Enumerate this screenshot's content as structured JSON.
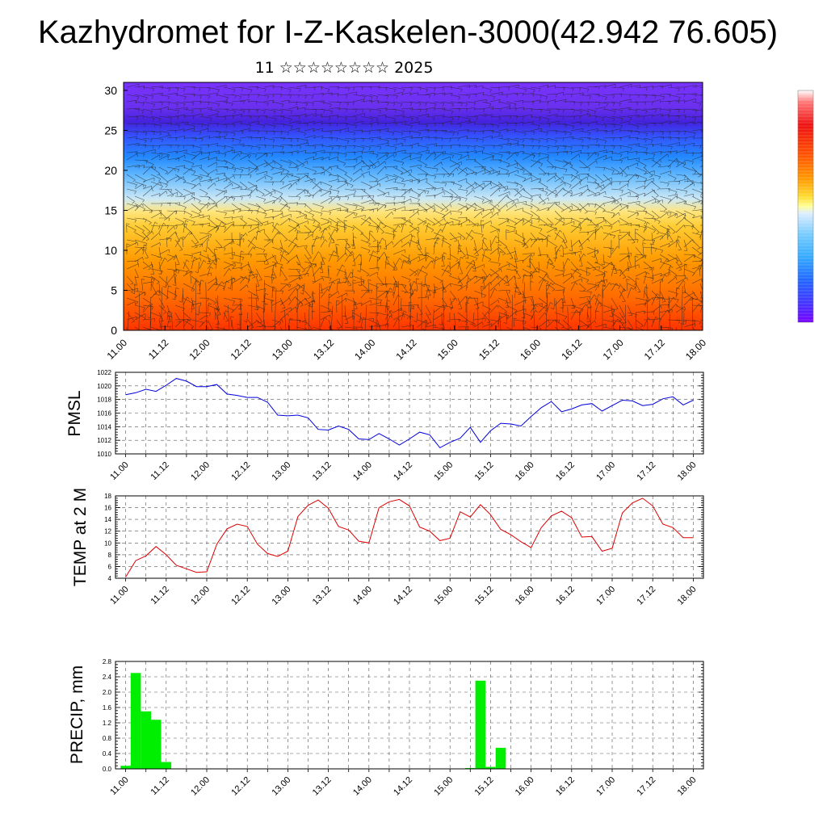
{
  "header": {
    "title": "Kazhydromet for I-Z-Kaskelen-3000(42.942 76.605)",
    "subtitle": "11 ☆☆☆☆☆☆☆☆ 2025"
  },
  "colors": {
    "pmsl": "#0000dd",
    "temp": "#dd0000",
    "precip": "#00ee00",
    "grid": "#555555"
  },
  "chart_data": [
    {
      "type": "heatmap",
      "name_hint": "cross-section",
      "x_tick_labels": [
        "11.00",
        "11.12",
        "12.00",
        "12.12",
        "13.00",
        "13.12",
        "14.00",
        "14.12",
        "15.00",
        "15.12",
        "16.00",
        "16.12",
        "17.00",
        "17.12",
        "18.00"
      ],
      "y_ticks": [
        0,
        5,
        10,
        15,
        20,
        25,
        30
      ],
      "ylim": [
        0,
        31
      ],
      "xlim": [
        0,
        168
      ],
      "colorbar": [
        "#ffffff",
        "#ff6666",
        "#ee1111",
        "#ff5500",
        "#ff9900",
        "#ffcc33",
        "#ffff66",
        "#cceeff",
        "#88ccff",
        "#33aaff",
        "#1166ff",
        "#4433ff",
        "#7700ff"
      ]
    },
    {
      "type": "line",
      "ylabel": "PMSL",
      "x_tick_labels": [
        "11.00",
        "11.12",
        "12.00",
        "12.12",
        "13.00",
        "13.12",
        "14.00",
        "14.12",
        "15.00",
        "15.12",
        "16.00",
        "16.12",
        "17.00",
        "17.12",
        "18.00"
      ],
      "y_ticks": [
        1010,
        1012,
        1014,
        1016,
        1018,
        1020,
        1022
      ],
      "ylim": [
        1010,
        1022
      ],
      "xlim": [
        -3,
        171
      ],
      "step_hours": 3,
      "values": [
        1018.7,
        1019.0,
        1019.5,
        1019.2,
        1020.1,
        1021.1,
        1020.7,
        1019.9,
        1019.9,
        1020.2,
        1018.8,
        1018.6,
        1018.3,
        1018.3,
        1017.6,
        1015.7,
        1015.6,
        1015.7,
        1015.3,
        1013.6,
        1013.5,
        1014.1,
        1013.6,
        1012.2,
        1012.1,
        1013.0,
        1012.2,
        1011.3,
        1012.2,
        1013.2,
        1012.8,
        1010.9,
        1011.7,
        1012.3,
        1013.9,
        1011.7,
        1013.4,
        1014.5,
        1014.4,
        1014.1,
        1015.5,
        1016.8,
        1017.7,
        1016.2,
        1016.6,
        1017.2,
        1017.4,
        1016.3,
        1017.1,
        1017.9,
        1017.8,
        1017.1,
        1017.3,
        1018.1,
        1018.4,
        1017.2,
        1017.9
      ]
    },
    {
      "type": "line",
      "ylabel": "TEMP at 2 M",
      "x_tick_labels": [
        "11.00",
        "11.12",
        "12.00",
        "12.12",
        "13.00",
        "13.12",
        "14.00",
        "14.12",
        "15.00",
        "15.12",
        "16.00",
        "16.12",
        "17.00",
        "17.12",
        "18.00"
      ],
      "y_ticks": [
        4,
        6,
        8,
        10,
        12,
        14,
        16,
        18
      ],
      "ylim": [
        4,
        18
      ],
      "xlim": [
        -3,
        171
      ],
      "step_hours": 3,
      "values": [
        4.2,
        7.0,
        7.8,
        9.4,
        8.0,
        6.2,
        5.6,
        5.0,
        5.1,
        9.8,
        12.4,
        13.2,
        12.8,
        9.8,
        8.2,
        7.7,
        8.6,
        14.5,
        16.4,
        17.3,
        15.9,
        12.8,
        12.2,
        10.3,
        10.0,
        16.0,
        17.0,
        17.4,
        16.3,
        12.7,
        12.0,
        10.4,
        10.8,
        15.3,
        14.4,
        16.5,
        14.8,
        12.3,
        11.4,
        10.2,
        9.2,
        12.6,
        14.6,
        15.4,
        14.3,
        11.0,
        11.1,
        8.6,
        9.1,
        15.1,
        16.8,
        17.6,
        16.3,
        13.2,
        12.6,
        10.9,
        10.9
      ]
    },
    {
      "type": "bar",
      "ylabel": "PRECIP, mm",
      "x_tick_labels": [
        "11.00",
        "11.12",
        "12.00",
        "12.12",
        "13.00",
        "13.12",
        "14.00",
        "14.12",
        "15.00",
        "15.12",
        "16.00",
        "16.12",
        "17.00",
        "17.12",
        "18.00"
      ],
      "y_ticks": [
        "0.0",
        "0.4",
        "0.8",
        "1.2",
        "1.6",
        "2.0",
        "2.4",
        "2.8"
      ],
      "ylim": [
        0,
        2.8
      ],
      "xlim": [
        -3,
        171
      ],
      "bar_width_hours": 3,
      "values": [
        0.08,
        2.5,
        1.5,
        1.28,
        0.18,
        0,
        0,
        0,
        0,
        0,
        0,
        0,
        0,
        0,
        0,
        0,
        0,
        0,
        0,
        0,
        0,
        0,
        0,
        0,
        0,
        0,
        0,
        0,
        0,
        0,
        0,
        0,
        0,
        0,
        0.02,
        2.3,
        0.05,
        0.55,
        0,
        0,
        0,
        0,
        0,
        0,
        0,
        0,
        0,
        0,
        0,
        0,
        0,
        0,
        0,
        0,
        0,
        0,
        0
      ]
    }
  ]
}
